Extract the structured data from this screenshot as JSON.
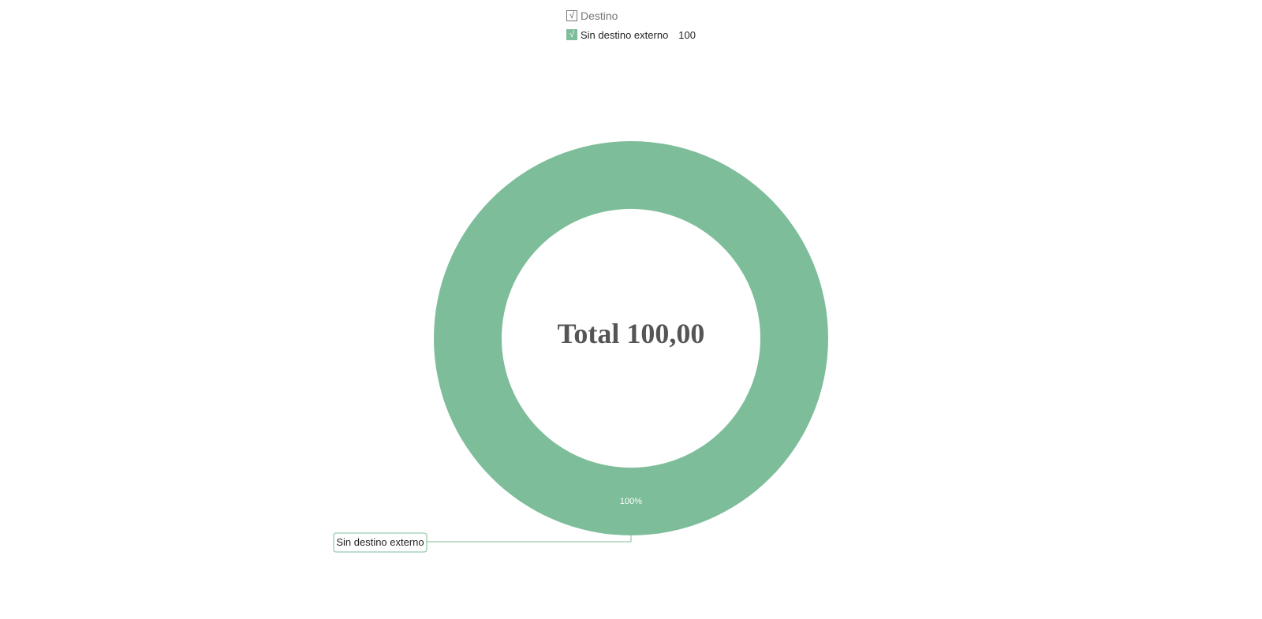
{
  "chart_data": {
    "type": "pie",
    "donut": true,
    "legend_title": "Destino",
    "legend_position": "top",
    "center_title": "Total 100,00",
    "series": [
      {
        "name": "Sin destino externo",
        "value": 100,
        "value_label": "100",
        "percent_label": "100%",
        "color": "#7dbd9a",
        "checked": true
      }
    ]
  },
  "colors": {
    "series": "#7dbd9a",
    "center_text": "#555555"
  },
  "icons": {
    "legend_header_check": "checkmark-icon",
    "legend_series_check": "checkmark-icon"
  },
  "symbols": {
    "check": "√"
  }
}
